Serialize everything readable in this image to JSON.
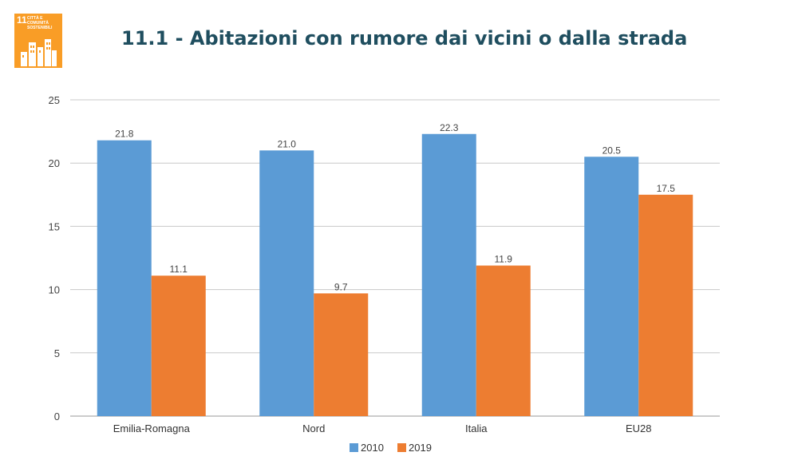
{
  "header": {
    "title": "11.1 - Abitazioni con rumore dai vicini o dalla strada"
  },
  "badge": {
    "number": "11",
    "text": "CITTÀ E COMUNITÀ\nSOSTENIBILI",
    "color": "#f99d26",
    "icon": "city-buildings-icon"
  },
  "chart_data": {
    "type": "bar",
    "categories": [
      "Emilia-Romagna",
      "Nord",
      "Italia",
      "EU28"
    ],
    "series": [
      {
        "name": "2010",
        "color": "#5b9bd5",
        "values": [
          21.8,
          21.0,
          22.3,
          20.5
        ]
      },
      {
        "name": "2019",
        "color": "#ed7d31",
        "values": [
          11.1,
          9.7,
          11.9,
          17.5
        ]
      }
    ],
    "data_labels": [
      [
        "21.8",
        "21.0",
        "22.3",
        "20.5"
      ],
      [
        "11.1",
        "9.7",
        "11.9",
        "17.5"
      ]
    ],
    "ylim": [
      0,
      25
    ],
    "yticks": [
      "0",
      "5",
      "10",
      "15",
      "20",
      "25"
    ],
    "grid": true,
    "legend": "bottom",
    "xlabel": "",
    "ylabel": ""
  }
}
